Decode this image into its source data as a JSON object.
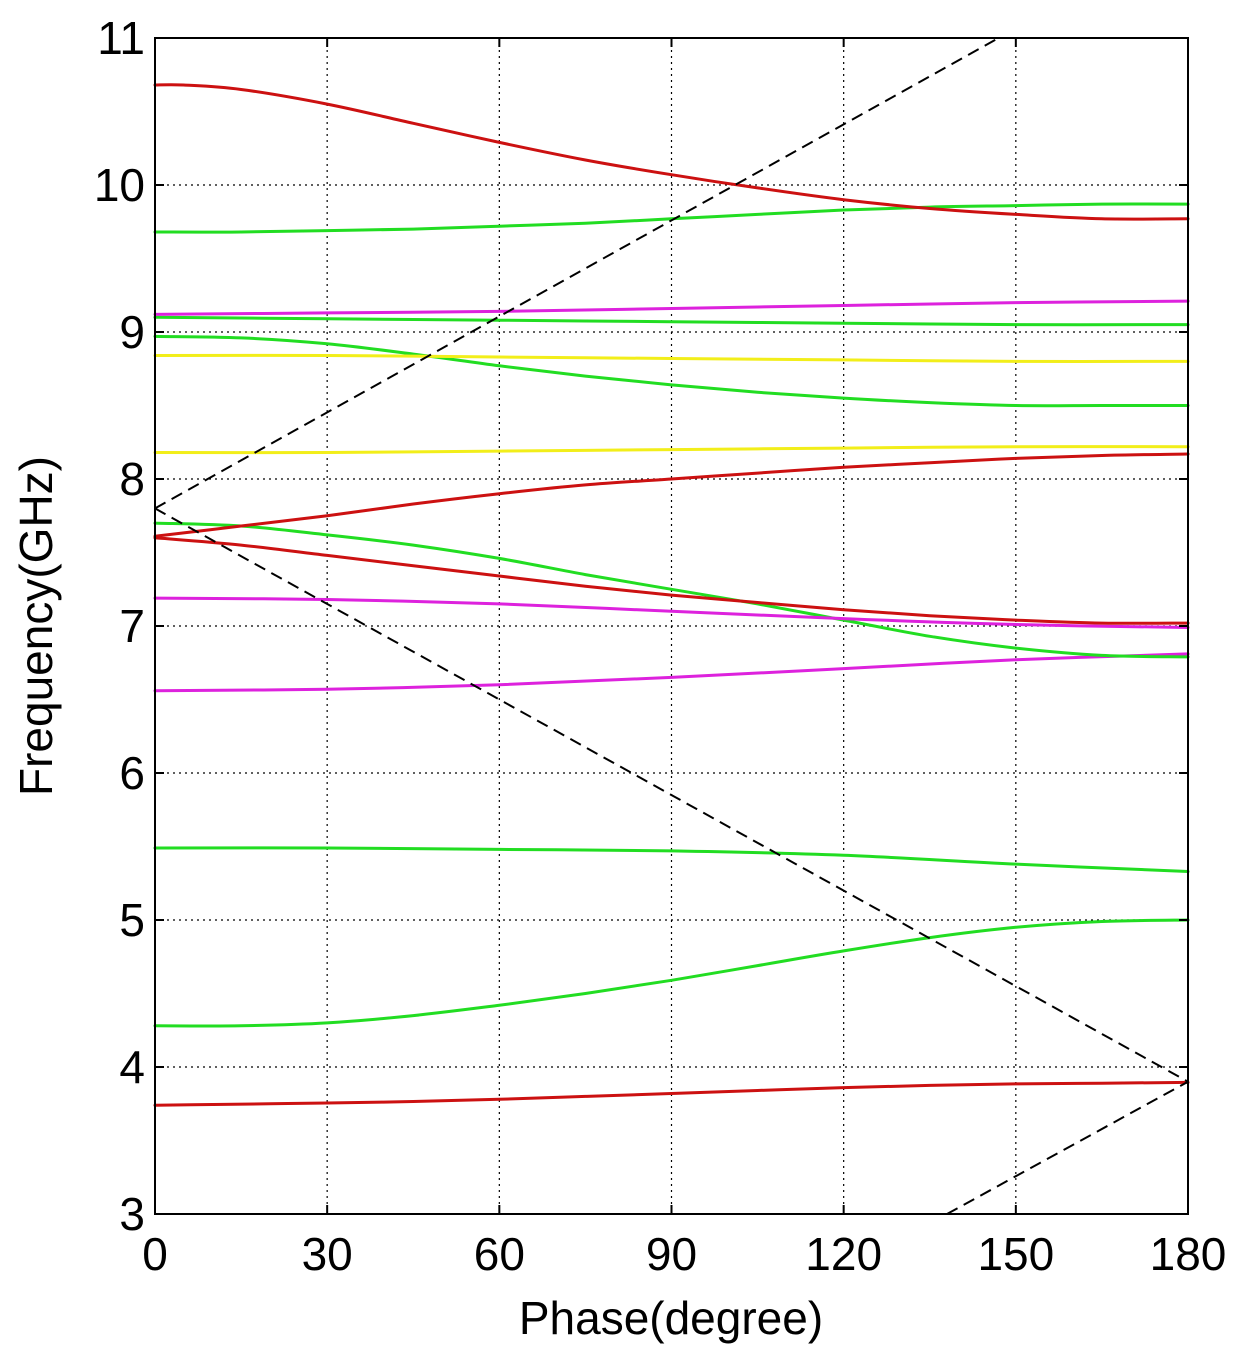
{
  "chart_data": {
    "type": "line",
    "title": "",
    "xlabel": "Phase(degree)",
    "ylabel": "Frequency(GHz)",
    "xlim": [
      0,
      180
    ],
    "ylim": [
      3,
      11
    ],
    "xticks": [
      0,
      30,
      60,
      90,
      120,
      150,
      180
    ],
    "yticks": [
      3,
      4,
      5,
      6,
      7,
      8,
      9,
      10,
      11
    ],
    "xtick_labels": [
      "0",
      "30",
      "60",
      "90",
      "120",
      "150",
      "180"
    ],
    "ytick_labels": [
      "3",
      "4",
      "5",
      "6",
      "7",
      "8",
      "9",
      "10",
      "11"
    ],
    "grid": true,
    "legend": "none",
    "colors": {
      "red": "#cc1111",
      "green": "#22dd22",
      "magenta": "#dd22dd",
      "yellow": "#f2ee1a",
      "light_line": "#000000"
    },
    "series": [
      {
        "color": "red",
        "x": [
          0,
          10,
          20,
          30,
          45,
          60,
          75,
          90,
          105,
          120,
          135,
          150,
          165,
          180
        ],
        "y": [
          3.74,
          3.745,
          3.75,
          3.755,
          3.765,
          3.78,
          3.8,
          3.82,
          3.84,
          3.86,
          3.875,
          3.885,
          3.89,
          3.895
        ]
      },
      {
        "color": "green",
        "x": [
          0,
          15,
          30,
          45,
          60,
          75,
          90,
          105,
          120,
          135,
          150,
          165,
          180
        ],
        "y": [
          4.28,
          4.28,
          4.3,
          4.35,
          4.42,
          4.5,
          4.59,
          4.69,
          4.79,
          4.88,
          4.95,
          4.99,
          5.0
        ]
      },
      {
        "color": "green",
        "x": [
          0,
          30,
          60,
          90,
          120,
          150,
          180
        ],
        "y": [
          5.49,
          5.49,
          5.48,
          5.47,
          5.44,
          5.38,
          5.33
        ]
      },
      {
        "color": "magenta",
        "x": [
          0,
          30,
          60,
          90,
          120,
          150,
          180
        ],
        "y": [
          6.56,
          6.57,
          6.6,
          6.65,
          6.71,
          6.77,
          6.81
        ]
      },
      {
        "color": "green",
        "x": [
          0,
          15,
          30,
          45,
          60,
          75,
          90,
          105,
          120,
          135,
          150,
          165,
          180
        ],
        "y": [
          7.7,
          7.68,
          7.62,
          7.55,
          7.46,
          7.35,
          7.25,
          7.15,
          7.04,
          6.93,
          6.85,
          6.8,
          6.79
        ]
      },
      {
        "color": "magenta",
        "x": [
          0,
          30,
          60,
          90,
          120,
          150,
          180
        ],
        "y": [
          7.19,
          7.18,
          7.15,
          7.1,
          7.05,
          7.01,
          6.99
        ]
      },
      {
        "color": "red",
        "x": [
          0,
          15,
          30,
          45,
          60,
          75,
          90,
          105,
          120,
          135,
          150,
          165,
          180
        ],
        "y": [
          7.6,
          7.55,
          7.48,
          7.41,
          7.34,
          7.27,
          7.21,
          7.16,
          7.11,
          7.07,
          7.04,
          7.02,
          7.02
        ]
      },
      {
        "color": "red",
        "x": [
          0,
          15,
          30,
          45,
          60,
          75,
          90,
          105,
          120,
          135,
          150,
          165,
          180
        ],
        "y": [
          7.61,
          7.68,
          7.75,
          7.83,
          7.9,
          7.96,
          8.0,
          8.04,
          8.08,
          8.11,
          8.14,
          8.16,
          8.17
        ]
      },
      {
        "color": "yellow",
        "x": [
          0,
          30,
          60,
          90,
          120,
          150,
          180
        ],
        "y": [
          8.18,
          8.18,
          8.19,
          8.2,
          8.21,
          8.22,
          8.22
        ]
      },
      {
        "color": "green",
        "x": [
          0,
          15,
          30,
          45,
          60,
          75,
          90,
          105,
          120,
          135,
          150,
          165,
          180
        ],
        "y": [
          8.97,
          8.96,
          8.92,
          8.85,
          8.77,
          8.7,
          8.64,
          8.59,
          8.55,
          8.52,
          8.5,
          8.5,
          8.5
        ]
      },
      {
        "color": "yellow",
        "x": [
          0,
          30,
          60,
          90,
          120,
          150,
          180
        ],
        "y": [
          8.84,
          8.84,
          8.83,
          8.82,
          8.81,
          8.8,
          8.8
        ]
      },
      {
        "color": "green",
        "x": [
          0,
          30,
          60,
          90,
          120,
          150,
          180
        ],
        "y": [
          9.1,
          9.09,
          9.08,
          9.07,
          9.06,
          9.05,
          9.05
        ]
      },
      {
        "color": "magenta",
        "x": [
          0,
          30,
          60,
          90,
          120,
          150,
          180
        ],
        "y": [
          9.12,
          9.13,
          9.14,
          9.16,
          9.18,
          9.2,
          9.21
        ]
      },
      {
        "color": "green",
        "x": [
          0,
          15,
          30,
          45,
          60,
          75,
          90,
          105,
          120,
          135,
          150,
          165,
          180
        ],
        "y": [
          9.68,
          9.68,
          9.69,
          9.7,
          9.72,
          9.74,
          9.77,
          9.8,
          9.83,
          9.85,
          9.86,
          9.87,
          9.87
        ]
      },
      {
        "color": "red",
        "x": [
          0,
          5,
          15,
          30,
          45,
          60,
          75,
          90,
          105,
          120,
          135,
          150,
          165,
          180
        ],
        "y": [
          10.68,
          10.68,
          10.65,
          10.55,
          10.42,
          10.29,
          10.17,
          10.07,
          9.98,
          9.9,
          9.84,
          9.8,
          9.77,
          9.77
        ]
      },
      {
        "color": "light_line",
        "x": [
          0,
          147
        ],
        "y": [
          7.8,
          11
        ]
      },
      {
        "color": "light_line",
        "x": [
          0,
          180
        ],
        "y": [
          7.8,
          3.9
        ]
      },
      {
        "color": "light_line",
        "x": [
          138,
          180
        ],
        "y": [
          3.0,
          3.9
        ]
      }
    ]
  }
}
